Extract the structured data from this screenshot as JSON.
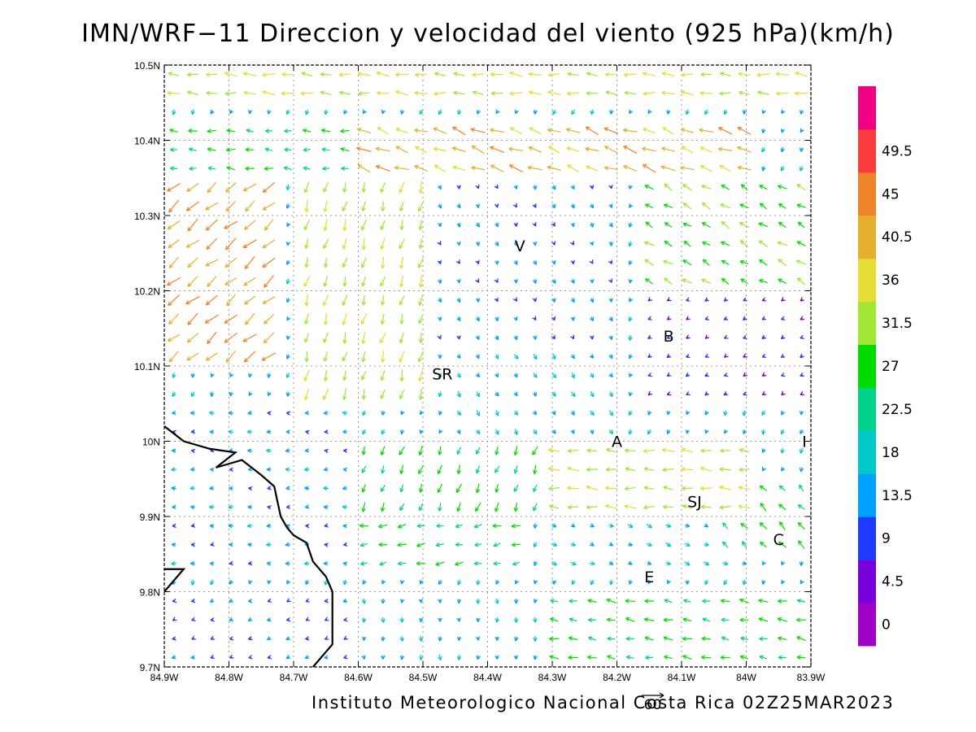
{
  "title": "IMN/WRF−11 Direccion y velocidad del viento (925 hPa)(km/h)",
  "credit": "Instituto Meteorologico Nacional Costa Rica 02Z25MAR2023",
  "reference_vector": {
    "label": "60",
    "speed": 60
  },
  "map": {
    "lon_range": [
      -84.9,
      -83.9
    ],
    "lat_range": [
      9.7,
      10.5
    ],
    "lon_ticks": [
      {
        "value": -84.9,
        "label": "84.9W"
      },
      {
        "value": -84.8,
        "label": "84.8W"
      },
      {
        "value": -84.7,
        "label": "84.7W"
      },
      {
        "value": -84.6,
        "label": "84.6W"
      },
      {
        "value": -84.5,
        "label": "84.5W"
      },
      {
        "value": -84.4,
        "label": "84.4W"
      },
      {
        "value": -84.3,
        "label": "84.3W"
      },
      {
        "value": -84.2,
        "label": "84.2W"
      },
      {
        "value": -84.1,
        "label": "84.1W"
      },
      {
        "value": -84.0,
        "label": "84W"
      },
      {
        "value": -83.9,
        "label": "83.9W"
      }
    ],
    "lat_ticks": [
      {
        "value": 9.7,
        "label": "9.7N"
      },
      {
        "value": 9.8,
        "label": "9.8N"
      },
      {
        "value": 9.9,
        "label": "9.9N"
      },
      {
        "value": 10.0,
        "label": "10N"
      },
      {
        "value": 10.1,
        "label": "10.1N"
      },
      {
        "value": 10.2,
        "label": "10.2N"
      },
      {
        "value": 10.3,
        "label": "10.3N"
      },
      {
        "value": 10.4,
        "label": "10.4N"
      },
      {
        "value": 10.5,
        "label": "10.5N"
      }
    ],
    "grid": "dotted",
    "cities": [
      {
        "label": "V",
        "lon": -84.35,
        "lat": 10.26
      },
      {
        "label": "SR",
        "lon": -84.47,
        "lat": 10.09
      },
      {
        "label": "B",
        "lon": -84.12,
        "lat": 10.14
      },
      {
        "label": "A",
        "lon": -84.2,
        "lat": 10.0
      },
      {
        "label": "I",
        "lon": -83.91,
        "lat": 10.0
      },
      {
        "label": "SJ",
        "lon": -84.08,
        "lat": 9.92
      },
      {
        "label": "C",
        "lon": -83.95,
        "lat": 9.87
      },
      {
        "label": "E",
        "lon": -84.15,
        "lat": 9.82
      }
    ],
    "coastline": [
      [
        -84.9,
        10.02
      ],
      [
        -84.87,
        10.0
      ],
      [
        -84.83,
        9.99
      ],
      [
        -84.79,
        9.985
      ],
      [
        -84.82,
        9.965
      ],
      [
        -84.78,
        9.975
      ],
      [
        -84.75,
        9.955
      ],
      [
        -84.73,
        9.94
      ],
      [
        -84.72,
        9.9
      ],
      [
        -84.71,
        9.885
      ],
      [
        -84.7,
        9.875
      ],
      [
        -84.68,
        9.865
      ],
      [
        -84.67,
        9.84
      ],
      [
        -84.65,
        9.82
      ],
      [
        -84.64,
        9.8
      ],
      [
        -84.64,
        9.76
      ],
      [
        -84.64,
        9.73
      ],
      [
        -84.66,
        9.71
      ],
      [
        -84.67,
        9.7
      ]
    ],
    "coastline_inlet": [
      [
        -84.9,
        9.8
      ],
      [
        -84.87,
        9.83
      ],
      [
        -84.9,
        9.83
      ]
    ]
  },
  "colorbar": {
    "labels": [
      "0",
      "4.5",
      "9",
      "13.5",
      "18",
      "22.5",
      "27",
      "31.5",
      "36",
      "40.5",
      "45",
      "49.5"
    ],
    "colors": [
      "#a000c8",
      "#7800dc",
      "#1e3cff",
      "#00a0ff",
      "#00c8c8",
      "#00d28c",
      "#00dc00",
      "#a0e632",
      "#e6dc32",
      "#e6af2d",
      "#f08228",
      "#fa3c3c",
      "#f00082"
    ]
  },
  "wind_field": {
    "regions": [
      {
        "lon": [
          -84.9,
          -83.9
        ],
        "lat": [
          10.44,
          10.5
        ],
        "dir_deg": 275,
        "speed": 33
      },
      {
        "lon": [
          -84.6,
          -84.0
        ],
        "lat": [
          10.36,
          10.43
        ],
        "dir_deg": 290,
        "speed": 38
      },
      {
        "lon": [
          -84.9,
          -84.6
        ],
        "lat": [
          10.36,
          10.43
        ],
        "dir_deg": 275,
        "speed": 22
      },
      {
        "lon": [
          -84.9,
          -84.72
        ],
        "lat": [
          10.1,
          10.35
        ],
        "dir_deg": 230,
        "speed": 40
      },
      {
        "lon": [
          -84.7,
          -84.5
        ],
        "lat": [
          10.05,
          10.35
        ],
        "dir_deg": 195,
        "speed": 30
      },
      {
        "lon": [
          -84.5,
          -84.2
        ],
        "lat": [
          10.12,
          10.34
        ],
        "dir_deg": 160,
        "speed": 10
      },
      {
        "lon": [
          -84.15,
          -83.9
        ],
        "lat": [
          10.2,
          10.35
        ],
        "dir_deg": 300,
        "speed": 26
      },
      {
        "lon": [
          -84.15,
          -83.9
        ],
        "lat": [
          10.05,
          10.2
        ],
        "dir_deg": 240,
        "speed": 6
      },
      {
        "lon": [
          -84.45,
          -84.2
        ],
        "lat": [
          10.0,
          10.12
        ],
        "dir_deg": 150,
        "speed": 14
      },
      {
        "lon": [
          -84.6,
          -84.3
        ],
        "lat": [
          9.9,
          10.0
        ],
        "dir_deg": 200,
        "speed": 24
      },
      {
        "lon": [
          -84.3,
          -84.0
        ],
        "lat": [
          9.9,
          9.99
        ],
        "dir_deg": 275,
        "speed": 30
      },
      {
        "lon": [
          -84.05,
          -83.9
        ],
        "lat": [
          9.84,
          9.96
        ],
        "dir_deg": 315,
        "speed": 24
      },
      {
        "lon": [
          -84.9,
          -84.6
        ],
        "lat": [
          9.82,
          10.05
        ],
        "dir_deg": 270,
        "speed": 11
      },
      {
        "lon": [
          -84.6,
          -84.35
        ],
        "lat": [
          9.82,
          9.9
        ],
        "dir_deg": 260,
        "speed": 22
      },
      {
        "lon": [
          -84.3,
          -84.0
        ],
        "lat": [
          9.82,
          9.9
        ],
        "dir_deg": 115,
        "speed": 14
      },
      {
        "lon": [
          -84.9,
          -84.6
        ],
        "lat": [
          9.7,
          9.8
        ],
        "dir_deg": 250,
        "speed": 8
      },
      {
        "lon": [
          -84.6,
          -84.3
        ],
        "lat": [
          9.7,
          9.8
        ],
        "dir_deg": 180,
        "speed": 12
      },
      {
        "lon": [
          -84.3,
          -83.9
        ],
        "lat": [
          9.7,
          9.8
        ],
        "dir_deg": 280,
        "speed": 24
      }
    ]
  }
}
